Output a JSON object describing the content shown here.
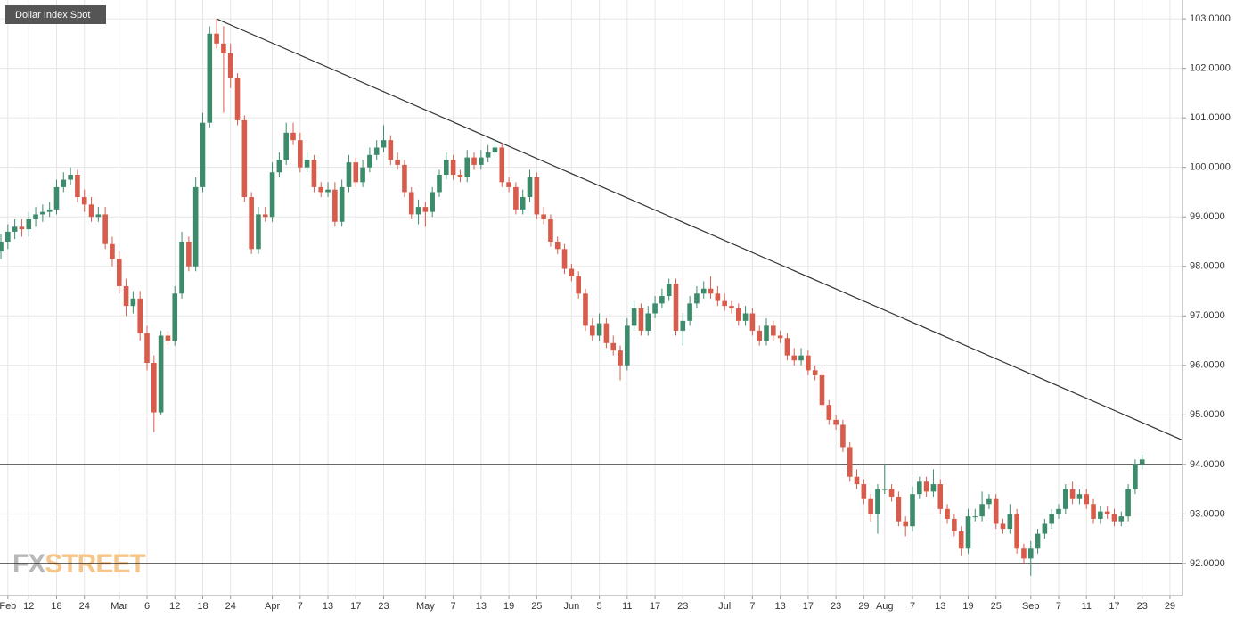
{
  "chart_data": {
    "type": "candlestick",
    "title": "Dollar Index Spot",
    "watermark": [
      "FX",
      "STREET"
    ],
    "up_color": "#3c8c6c",
    "down_color": "#d85c4c",
    "grid": true,
    "categories": [
      null,
      "Feb",
      null,
      null,
      "12",
      null,
      null,
      null,
      "18",
      null,
      null,
      null,
      "24",
      null,
      null,
      null,
      null,
      "Mar",
      null,
      null,
      null,
      "6",
      null,
      null,
      null,
      "12",
      null,
      null,
      null,
      "18",
      null,
      null,
      null,
      "24",
      null,
      null,
      null,
      null,
      null,
      "Apr",
      null,
      null,
      null,
      "7",
      null,
      null,
      null,
      "13",
      null,
      null,
      null,
      "17",
      null,
      null,
      null,
      "23",
      null,
      null,
      null,
      null,
      null,
      "May",
      null,
      null,
      null,
      "7",
      null,
      null,
      null,
      "13",
      null,
      null,
      null,
      "19",
      null,
      null,
      null,
      "25",
      null,
      null,
      null,
      null,
      "Jun",
      null,
      null,
      null,
      "5",
      null,
      null,
      null,
      "11",
      null,
      null,
      null,
      "17",
      null,
      null,
      null,
      "23",
      null,
      null,
      null,
      null,
      null,
      "Jul",
      null,
      null,
      null,
      "7",
      null,
      null,
      null,
      "13",
      null,
      null,
      null,
      "17",
      null,
      null,
      null,
      "23",
      null,
      null,
      null,
      "29",
      null,
      null,
      "Aug",
      null,
      null,
      null,
      "7",
      null,
      null,
      null,
      "13",
      null,
      null,
      null,
      "19",
      null,
      null,
      null,
      "25",
      null,
      null,
      null,
      null,
      "Sep",
      null,
      null,
      null,
      "7",
      null,
      null,
      null,
      "11",
      null,
      null,
      null,
      "17",
      null,
      null,
      null,
      "23",
      null,
      null,
      null,
      "29"
    ],
    "open": [
      98.3,
      98.5,
      98.7,
      98.8,
      98.75,
      98.95,
      99.05,
      99.1,
      99.15,
      99.6,
      99.75,
      99.85,
      99.4,
      99.25,
      99.0,
      99.05,
      98.45,
      98.15,
      97.6,
      97.2,
      97.35,
      96.65,
      96.05,
      95.05,
      96.6,
      96.5,
      97.45,
      98.5,
      98.0,
      99.6,
      100.9,
      102.7,
      102.5,
      102.3,
      101.8,
      100.95,
      99.4,
      98.35,
      99.05,
      99.0,
      99.9,
      100.15,
      100.7,
      100.55,
      100.0,
      100.15,
      99.6,
      99.5,
      99.55,
      98.9,
      99.6,
      100.1,
      99.7,
      100.0,
      100.25,
      100.4,
      100.55,
      100.15,
      100.05,
      99.5,
      99.05,
      99.2,
      99.1,
      99.5,
      99.85,
      100.15,
      99.85,
      99.8,
      100.2,
      100.05,
      100.2,
      100.3,
      100.4,
      99.7,
      99.6,
      99.15,
      99.4,
      99.8,
      99.05,
      98.95,
      98.5,
      98.35,
      97.95,
      97.8,
      97.45,
      96.8,
      96.6,
      96.85,
      96.45,
      96.3,
      96.0,
      96.8,
      97.15,
      96.7,
      97.05,
      97.25,
      97.4,
      97.65,
      96.7,
      96.9,
      97.25,
      97.45,
      97.55,
      97.45,
      97.3,
      97.2,
      97.15,
      96.9,
      97.05,
      96.7,
      96.5,
      96.8,
      96.6,
      96.55,
      96.2,
      96.1,
      96.2,
      95.9,
      95.8,
      95.2,
      94.9,
      94.8,
      94.35,
      93.75,
      93.6,
      93.3,
      93.0,
      93.5,
      93.5,
      93.35,
      92.85,
      92.75,
      93.4,
      93.65,
      93.45,
      93.6,
      93.1,
      92.9,
      92.65,
      92.3,
      92.95,
      92.95,
      93.2,
      93.3,
      92.8,
      92.7,
      93.0,
      92.3,
      92.1,
      92.3,
      92.6,
      92.8,
      93.0,
      93.1,
      93.5,
      93.3,
      93.4,
      93.2,
      92.9,
      93.05,
      93.0,
      92.85,
      92.95,
      93.5,
      94.0,
      null,
      null,
      null,
      null
    ],
    "high": [
      98.65,
      98.85,
      98.95,
      98.95,
      99.1,
      99.2,
      99.25,
      99.3,
      99.75,
      99.9,
      100.0,
      99.95,
      99.55,
      99.4,
      99.2,
      99.2,
      98.6,
      98.3,
      97.75,
      97.5,
      97.5,
      96.8,
      96.2,
      96.7,
      96.7,
      97.6,
      98.7,
      98.6,
      99.8,
      101.1,
      102.85,
      103.0,
      102.85,
      102.5,
      101.9,
      101.05,
      99.5,
      99.2,
      99.2,
      100.1,
      100.3,
      100.9,
      100.9,
      100.7,
      100.3,
      100.25,
      99.7,
      99.7,
      99.7,
      99.75,
      100.25,
      100.2,
      100.15,
      100.4,
      100.55,
      100.85,
      100.65,
      100.3,
      100.15,
      99.6,
      99.35,
      99.3,
      99.6,
      99.95,
      100.3,
      100.25,
      99.95,
      100.35,
      100.3,
      100.35,
      100.45,
      100.55,
      100.5,
      99.8,
      99.7,
      99.55,
      99.95,
      99.9,
      99.2,
      99.05,
      98.6,
      98.45,
      98.05,
      97.9,
      97.55,
      96.95,
      97.05,
      96.95,
      96.6,
      96.4,
      96.95,
      97.3,
      97.25,
      97.2,
      97.4,
      97.55,
      97.75,
      97.75,
      97.05,
      97.4,
      97.6,
      97.7,
      97.8,
      97.6,
      97.45,
      97.3,
      97.25,
      97.2,
      97.15,
      96.8,
      96.95,
      96.9,
      96.7,
      96.65,
      96.35,
      96.35,
      96.3,
      96.0,
      95.9,
      95.3,
      95.0,
      94.9,
      94.45,
      93.9,
      93.7,
      93.4,
      93.6,
      94.0,
      93.6,
      93.45,
      92.95,
      93.55,
      93.75,
      93.75,
      93.9,
      93.7,
      93.2,
      93.0,
      92.75,
      93.1,
      93.1,
      93.45,
      93.4,
      93.4,
      92.9,
      93.2,
      93.1,
      92.4,
      92.45,
      92.7,
      92.9,
      93.1,
      93.2,
      93.6,
      93.65,
      93.5,
      93.5,
      93.3,
      93.15,
      93.15,
      93.1,
      93.05,
      93.6,
      94.1,
      94.2,
      null,
      null,
      null,
      null
    ],
    "low": [
      98.15,
      98.35,
      98.55,
      98.6,
      98.6,
      98.8,
      98.9,
      99.0,
      99.05,
      99.5,
      99.65,
      99.3,
      99.1,
      98.9,
      98.9,
      98.35,
      98.0,
      97.45,
      97.0,
      97.05,
      96.5,
      95.9,
      94.65,
      95.0,
      96.4,
      96.4,
      97.35,
      97.9,
      97.9,
      99.5,
      100.8,
      102.4,
      101.1,
      101.6,
      100.85,
      99.3,
      98.25,
      98.25,
      98.9,
      98.9,
      99.8,
      100.05,
      100.45,
      99.9,
      99.9,
      99.5,
      99.4,
      99.4,
      98.8,
      98.8,
      99.5,
      99.6,
      99.6,
      99.9,
      100.15,
      100.3,
      100.05,
      99.95,
      99.4,
      98.95,
      98.85,
      98.8,
      99.0,
      99.4,
      99.75,
      99.75,
      99.7,
      99.7,
      99.95,
      99.95,
      100.1,
      100.2,
      99.6,
      99.5,
      99.05,
      99.05,
      99.3,
      98.95,
      98.85,
      98.4,
      98.25,
      97.85,
      97.7,
      97.35,
      96.7,
      96.5,
      96.5,
      96.35,
      96.2,
      95.7,
      95.9,
      96.7,
      96.6,
      96.6,
      96.95,
      97.15,
      97.3,
      96.6,
      96.4,
      96.8,
      97.15,
      97.35,
      97.35,
      97.2,
      97.1,
      97.05,
      96.8,
      96.8,
      96.6,
      96.4,
      96.4,
      96.5,
      96.45,
      96.1,
      96.0,
      96.0,
      95.8,
      95.7,
      95.1,
      94.8,
      94.7,
      94.25,
      93.65,
      93.5,
      93.2,
      92.85,
      92.6,
      93.4,
      93.25,
      92.75,
      92.55,
      92.65,
      93.3,
      93.35,
      93.35,
      93.0,
      92.8,
      92.55,
      92.15,
      92.2,
      92.85,
      92.85,
      93.1,
      92.7,
      92.6,
      92.6,
      92.2,
      92.0,
      91.75,
      92.2,
      92.5,
      92.7,
      92.9,
      93.0,
      93.2,
      93.2,
      93.1,
      92.8,
      92.8,
      92.9,
      92.75,
      92.75,
      92.85,
      93.4,
      93.9,
      null,
      null,
      null,
      null
    ],
    "close": [
      98.5,
      98.7,
      98.8,
      98.75,
      98.95,
      99.05,
      99.1,
      99.15,
      99.6,
      99.75,
      99.85,
      99.4,
      99.25,
      99.0,
      99.05,
      98.45,
      98.15,
      97.6,
      97.2,
      97.35,
      96.65,
      96.05,
      95.05,
      96.6,
      96.5,
      97.45,
      98.5,
      98.0,
      99.6,
      100.9,
      102.7,
      102.5,
      102.3,
      101.8,
      100.95,
      99.4,
      98.35,
      99.05,
      99.0,
      99.9,
      100.15,
      100.7,
      100.55,
      100.0,
      100.15,
      99.6,
      99.5,
      99.55,
      98.9,
      99.6,
      100.1,
      99.7,
      100.0,
      100.25,
      100.4,
      100.55,
      100.15,
      100.05,
      99.5,
      99.05,
      99.2,
      99.1,
      99.5,
      99.85,
      100.15,
      99.85,
      99.8,
      100.2,
      100.05,
      100.2,
      100.3,
      100.4,
      99.7,
      99.6,
      99.15,
      99.4,
      99.8,
      99.05,
      98.95,
      98.5,
      98.35,
      97.95,
      97.8,
      97.45,
      96.8,
      96.6,
      96.85,
      96.45,
      96.3,
      96.0,
      96.8,
      97.15,
      96.7,
      97.05,
      97.25,
      97.4,
      97.65,
      96.7,
      96.9,
      97.25,
      97.45,
      97.55,
      97.45,
      97.3,
      97.2,
      97.15,
      96.9,
      97.05,
      96.7,
      96.5,
      96.8,
      96.6,
      96.55,
      96.2,
      96.1,
      96.2,
      95.9,
      95.8,
      95.2,
      94.9,
      94.8,
      94.35,
      93.75,
      93.6,
      93.3,
      93.0,
      93.5,
      93.5,
      93.35,
      92.85,
      92.75,
      93.4,
      93.65,
      93.45,
      93.6,
      93.1,
      92.9,
      92.65,
      92.3,
      92.95,
      92.95,
      93.2,
      93.3,
      92.8,
      92.7,
      93.0,
      92.3,
      92.1,
      92.3,
      92.6,
      92.8,
      93.0,
      93.1,
      93.5,
      93.3,
      93.4,
      93.2,
      92.9,
      93.05,
      93.0,
      92.85,
      92.95,
      93.5,
      94.0,
      94.1,
      null,
      null,
      null,
      null
    ],
    "xlim": [
      -0.13,
      169.8
    ],
    "ylim": [
      91.35,
      103.38
    ],
    "yticks": [
      {
        "value": 92,
        "label": "92.0000"
      },
      {
        "value": 93,
        "label": "93.0000"
      },
      {
        "value": 94,
        "label": "94.0000"
      },
      {
        "value": 95,
        "label": "95.0000"
      },
      {
        "value": 96,
        "label": "96.0000"
      },
      {
        "value": 97,
        "label": "97.0000"
      },
      {
        "value": 98,
        "label": "98.0000"
      },
      {
        "value": 99,
        "label": "99.0000"
      },
      {
        "value": 100,
        "label": "100.0000"
      },
      {
        "value": 101,
        "label": "101.0000"
      },
      {
        "value": 102,
        "label": "102.0000"
      },
      {
        "value": 103,
        "label": "103.0000"
      }
    ],
    "hlines": [
      94,
      92
    ],
    "trendline": {
      "x": [
        31,
        169.8
      ],
      "y": [
        103.0,
        94.49
      ]
    }
  }
}
